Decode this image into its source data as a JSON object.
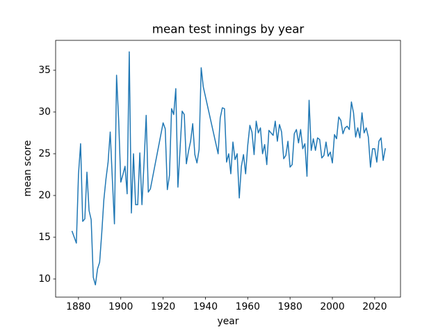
{
  "chart_data": {
    "type": "line",
    "title": "mean test innings by year",
    "x_label": "year",
    "y_label": "mean score",
    "x": [
      1877,
      1879,
      1880,
      1881,
      1882,
      1883,
      1884,
      1885,
      1886,
      1887,
      1888,
      1889,
      1890,
      1891,
      1892,
      1893,
      1894,
      1895,
      1896,
      1897,
      1898,
      1899,
      1900,
      1901,
      1902,
      1903,
      1904,
      1905,
      1906,
      1907,
      1908,
      1909,
      1910,
      1911,
      1912,
      1913,
      1914,
      1920,
      1921,
      1922,
      1923,
      1924,
      1925,
      1926,
      1927,
      1928,
      1929,
      1930,
      1931,
      1932,
      1933,
      1934,
      1935,
      1936,
      1937,
      1938,
      1939,
      1946,
      1947,
      1948,
      1949,
      1950,
      1951,
      1952,
      1953,
      1954,
      1955,
      1956,
      1957,
      1958,
      1959,
      1960,
      1961,
      1962,
      1963,
      1964,
      1965,
      1966,
      1967,
      1968,
      1969,
      1970,
      1971,
      1972,
      1973,
      1974,
      1975,
      1976,
      1977,
      1978,
      1979,
      1980,
      1981,
      1982,
      1983,
      1984,
      1985,
      1986,
      1987,
      1988,
      1989,
      1990,
      1991,
      1992,
      1993,
      1994,
      1995,
      1996,
      1997,
      1998,
      1999,
      2000,
      2001,
      2002,
      2003,
      2004,
      2005,
      2006,
      2007,
      2008,
      2009,
      2010,
      2011,
      2012,
      2013,
      2014,
      2015,
      2016,
      2017,
      2018,
      2019,
      2020,
      2021,
      2022,
      2023,
      2024,
      2025
    ],
    "series": [
      {
        "name": "mean score",
        "color": "#1f77b4",
        "values": [
          15.7,
          14.3,
          22.5,
          26.2,
          16.9,
          17.2,
          22.8,
          18.2,
          17.1,
          10.2,
          9.3,
          11.2,
          12.0,
          15.5,
          19.5,
          22.0,
          24.0,
          27.6,
          22.0,
          16.6,
          34.4,
          29.0,
          21.6,
          22.5,
          23.5,
          20.2,
          37.2,
          17.9,
          25.0,
          18.9,
          18.9,
          25.1,
          18.9,
          24.0,
          29.6,
          20.4,
          20.8,
          28.7,
          28.0,
          20.7,
          22.4,
          30.4,
          29.7,
          32.8,
          21.0,
          25.5,
          30.1,
          29.7,
          23.8,
          25.3,
          26.5,
          28.6,
          24.9,
          23.9,
          25.5,
          35.3,
          33.0,
          25.0,
          29.3,
          30.5,
          30.4,
          24.0,
          25.0,
          22.6,
          26.4,
          24.3,
          25.0,
          19.7,
          23.5,
          24.9,
          22.6,
          26.0,
          28.4,
          27.6,
          24.9,
          28.9,
          27.5,
          28.1,
          25.0,
          26.1,
          23.7,
          27.8,
          27.5,
          27.2,
          28.9,
          26.5,
          28.5,
          27.6,
          24.4,
          24.8,
          26.5,
          23.4,
          23.7,
          27.4,
          27.9,
          26.3,
          27.9,
          25.6,
          26.2,
          22.3,
          31.4,
          25.4,
          26.8,
          25.4,
          26.9,
          26.7,
          24.5,
          24.8,
          26.4,
          24.7,
          25.2,
          23.9,
          27.3,
          26.8,
          29.4,
          29.0,
          27.4,
          28.1,
          28.3,
          27.9,
          31.2,
          29.9,
          27.0,
          28.1,
          26.9,
          29.9,
          27.5,
          28.1,
          27.0,
          23.4,
          25.6,
          25.6,
          24.0,
          26.5,
          26.9,
          24.2,
          25.6
        ]
      }
    ],
    "xlim": [
      1869.2,
      2032.2
    ],
    "ylim": [
      7.83,
      38.58
    ],
    "xticks": [
      1880,
      1900,
      1920,
      1940,
      1960,
      1980,
      2000,
      2020
    ],
    "yticks": [
      10,
      15,
      20,
      25,
      30,
      35
    ],
    "grid": false
  }
}
